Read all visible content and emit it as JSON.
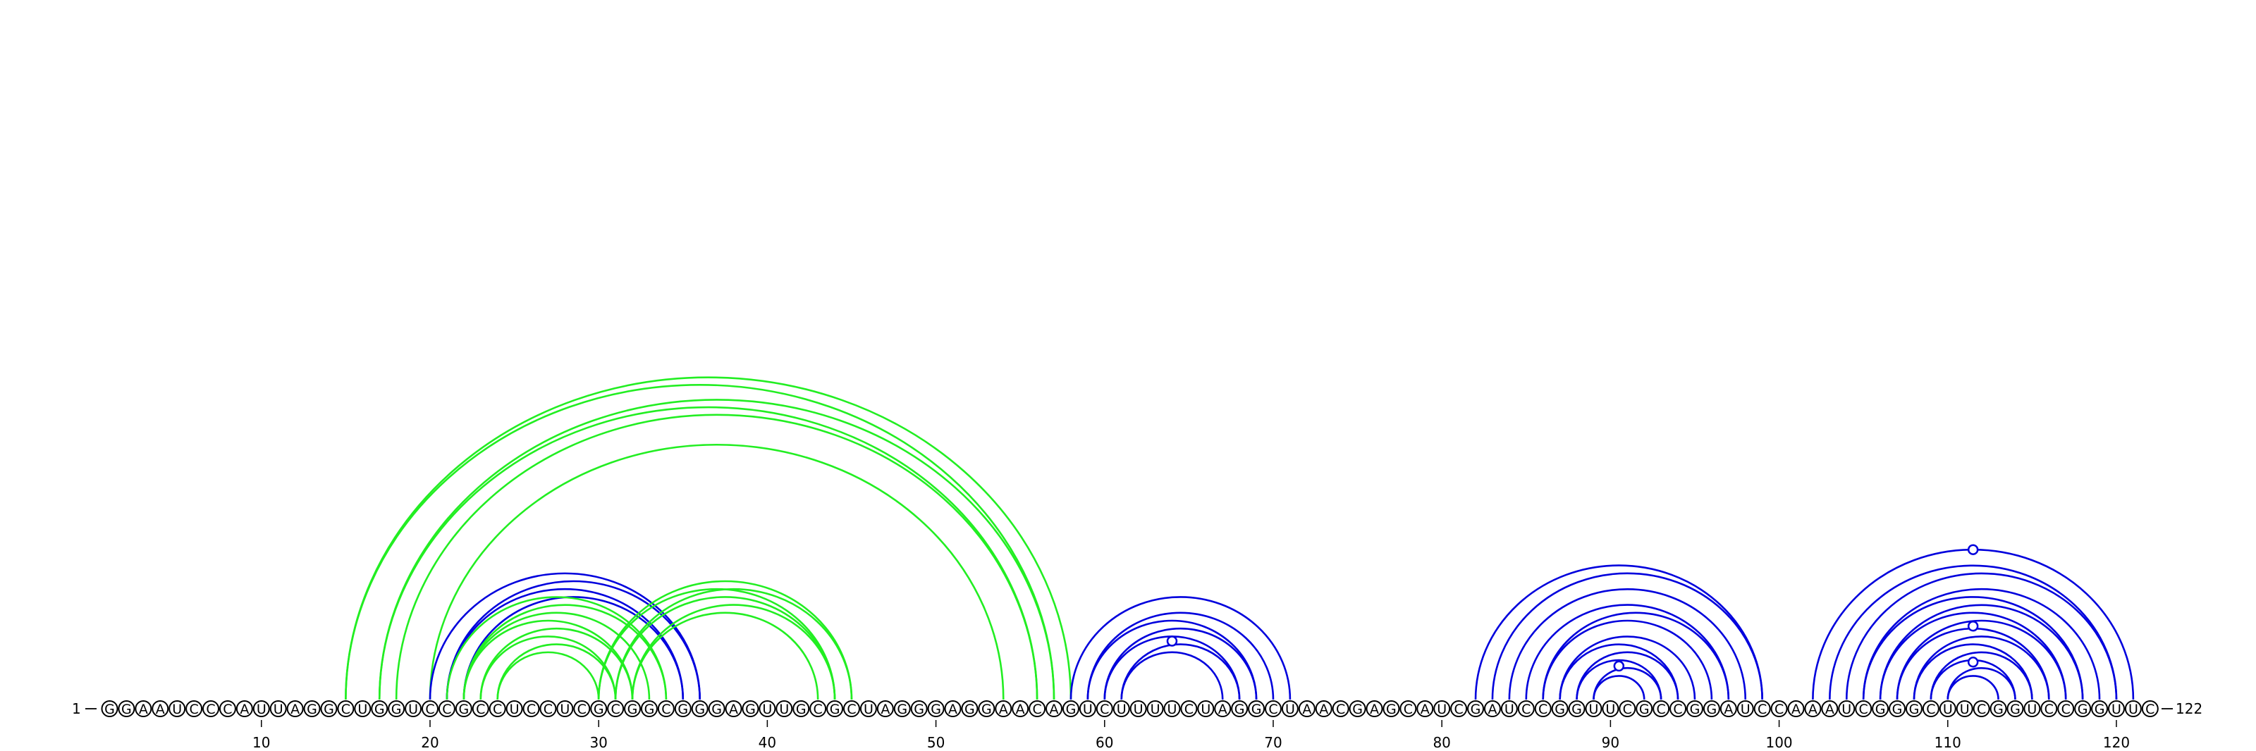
{
  "start_label": "1",
  "end_label": "122",
  "sequence": "GGAAUCCCAUUAGGCUGGUCCGCCUCCUCGCGGCGGGAGUUGCGCUAGGGAGGAACAGUCUUUUCUAGGCUAACGAGCAUCGAUCCGGUUCGCCGGAUCCAAAUCGGGCUUCGGUCCGGUUC",
  "colors": {
    "blue": "#0000dd",
    "green": "#22ee22"
  },
  "ticks": [
    10,
    20,
    30,
    40,
    50,
    60,
    70,
    80,
    90,
    100,
    110,
    120
  ],
  "arc_groups": [
    {
      "color": "green",
      "pairs": [
        [
          15,
          58
        ],
        [
          15,
          57
        ],
        [
          17,
          57
        ],
        [
          17,
          56
        ],
        [
          18,
          56
        ],
        [
          20,
          54
        ]
      ]
    },
    {
      "color": "blue",
      "pairs": [
        [
          20,
          36
        ],
        [
          21,
          36
        ],
        [
          21,
          35
        ],
        [
          22,
          35
        ]
      ]
    },
    {
      "color": "green",
      "pairs": [
        [
          21,
          34
        ],
        [
          22,
          34
        ],
        [
          22,
          33
        ],
        [
          22,
          32
        ],
        [
          23,
          32
        ],
        [
          23,
          31
        ],
        [
          24,
          31
        ],
        [
          24,
          30
        ]
      ]
    },
    {
      "color": "green",
      "pairs": [
        [
          30,
          45
        ],
        [
          30,
          44
        ],
        [
          31,
          45
        ],
        [
          31,
          44
        ],
        [
          32,
          44
        ],
        [
          32,
          43
        ]
      ]
    },
    {
      "color": "blue",
      "pairs": [
        [
          58,
          71
        ],
        [
          59,
          69
        ],
        [
          59,
          70
        ],
        [
          60,
          69
        ],
        [
          60,
          68
        ],
        [
          61,
          68
        ],
        [
          61,
          67
        ]
      ]
    },
    {
      "color": "blue",
      "pairs": [
        [
          82,
          99
        ],
        [
          83,
          99
        ],
        [
          84,
          98
        ],
        [
          85,
          97
        ],
        [
          86,
          97
        ],
        [
          86,
          96
        ],
        [
          87,
          95
        ],
        [
          87,
          94
        ],
        [
          88,
          94
        ],
        [
          88,
          93
        ],
        [
          89,
          93
        ],
        [
          89,
          92
        ]
      ]
    },
    {
      "color": "blue",
      "pairs": [
        [
          102,
          121
        ],
        [
          103,
          120
        ],
        [
          104,
          120
        ],
        [
          105,
          119
        ],
        [
          105,
          118
        ],
        [
          106,
          118
        ],
        [
          106,
          117
        ],
        [
          107,
          117
        ],
        [
          107,
          116
        ],
        [
          108,
          116
        ],
        [
          108,
          115
        ],
        [
          109,
          115
        ],
        [
          109,
          114
        ],
        [
          110,
          114
        ],
        [
          110,
          113
        ]
      ]
    }
  ],
  "markers": [
    {
      "color": "blue",
      "position": 64.0,
      "level": 0.57
    },
    {
      "color": "blue",
      "position": 90.5,
      "level": 0.25
    },
    {
      "color": "blue",
      "position": 111.5,
      "level": 1.0
    },
    {
      "color": "blue",
      "position": 111.5,
      "level": 0.49
    },
    {
      "color": "blue",
      "position": 111.5,
      "level": 0.25
    }
  ]
}
